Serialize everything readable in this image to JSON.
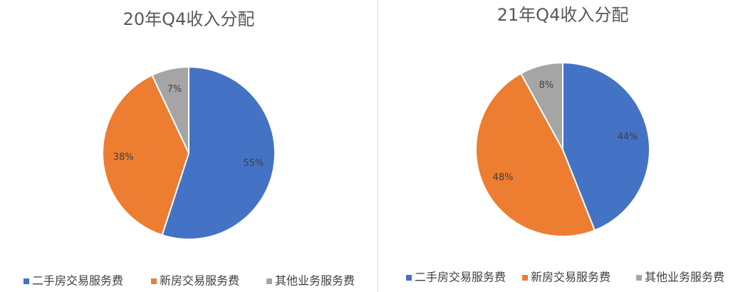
{
  "chart_data": [
    {
      "type": "pie",
      "title": "20年Q4收入分配",
      "categories": [
        "二手房交易服务费",
        "新房交易服务费",
        "其他业务服务费"
      ],
      "values": [
        55,
        38,
        7
      ],
      "value_labels": [
        "55%",
        "38%",
        "7%"
      ],
      "colors": [
        "#4472c4",
        "#ed7d31",
        "#a5a5a5"
      ]
    },
    {
      "type": "pie",
      "title": "21年Q4收入分配",
      "categories": [
        "二手房交易服务费",
        "新房交易服务费",
        "其他业务服务费"
      ],
      "values": [
        44,
        48,
        8
      ],
      "value_labels": [
        "44%",
        "48%",
        "8%"
      ],
      "colors": [
        "#4472c4",
        "#ed7d31",
        "#a5a5a5"
      ]
    }
  ]
}
